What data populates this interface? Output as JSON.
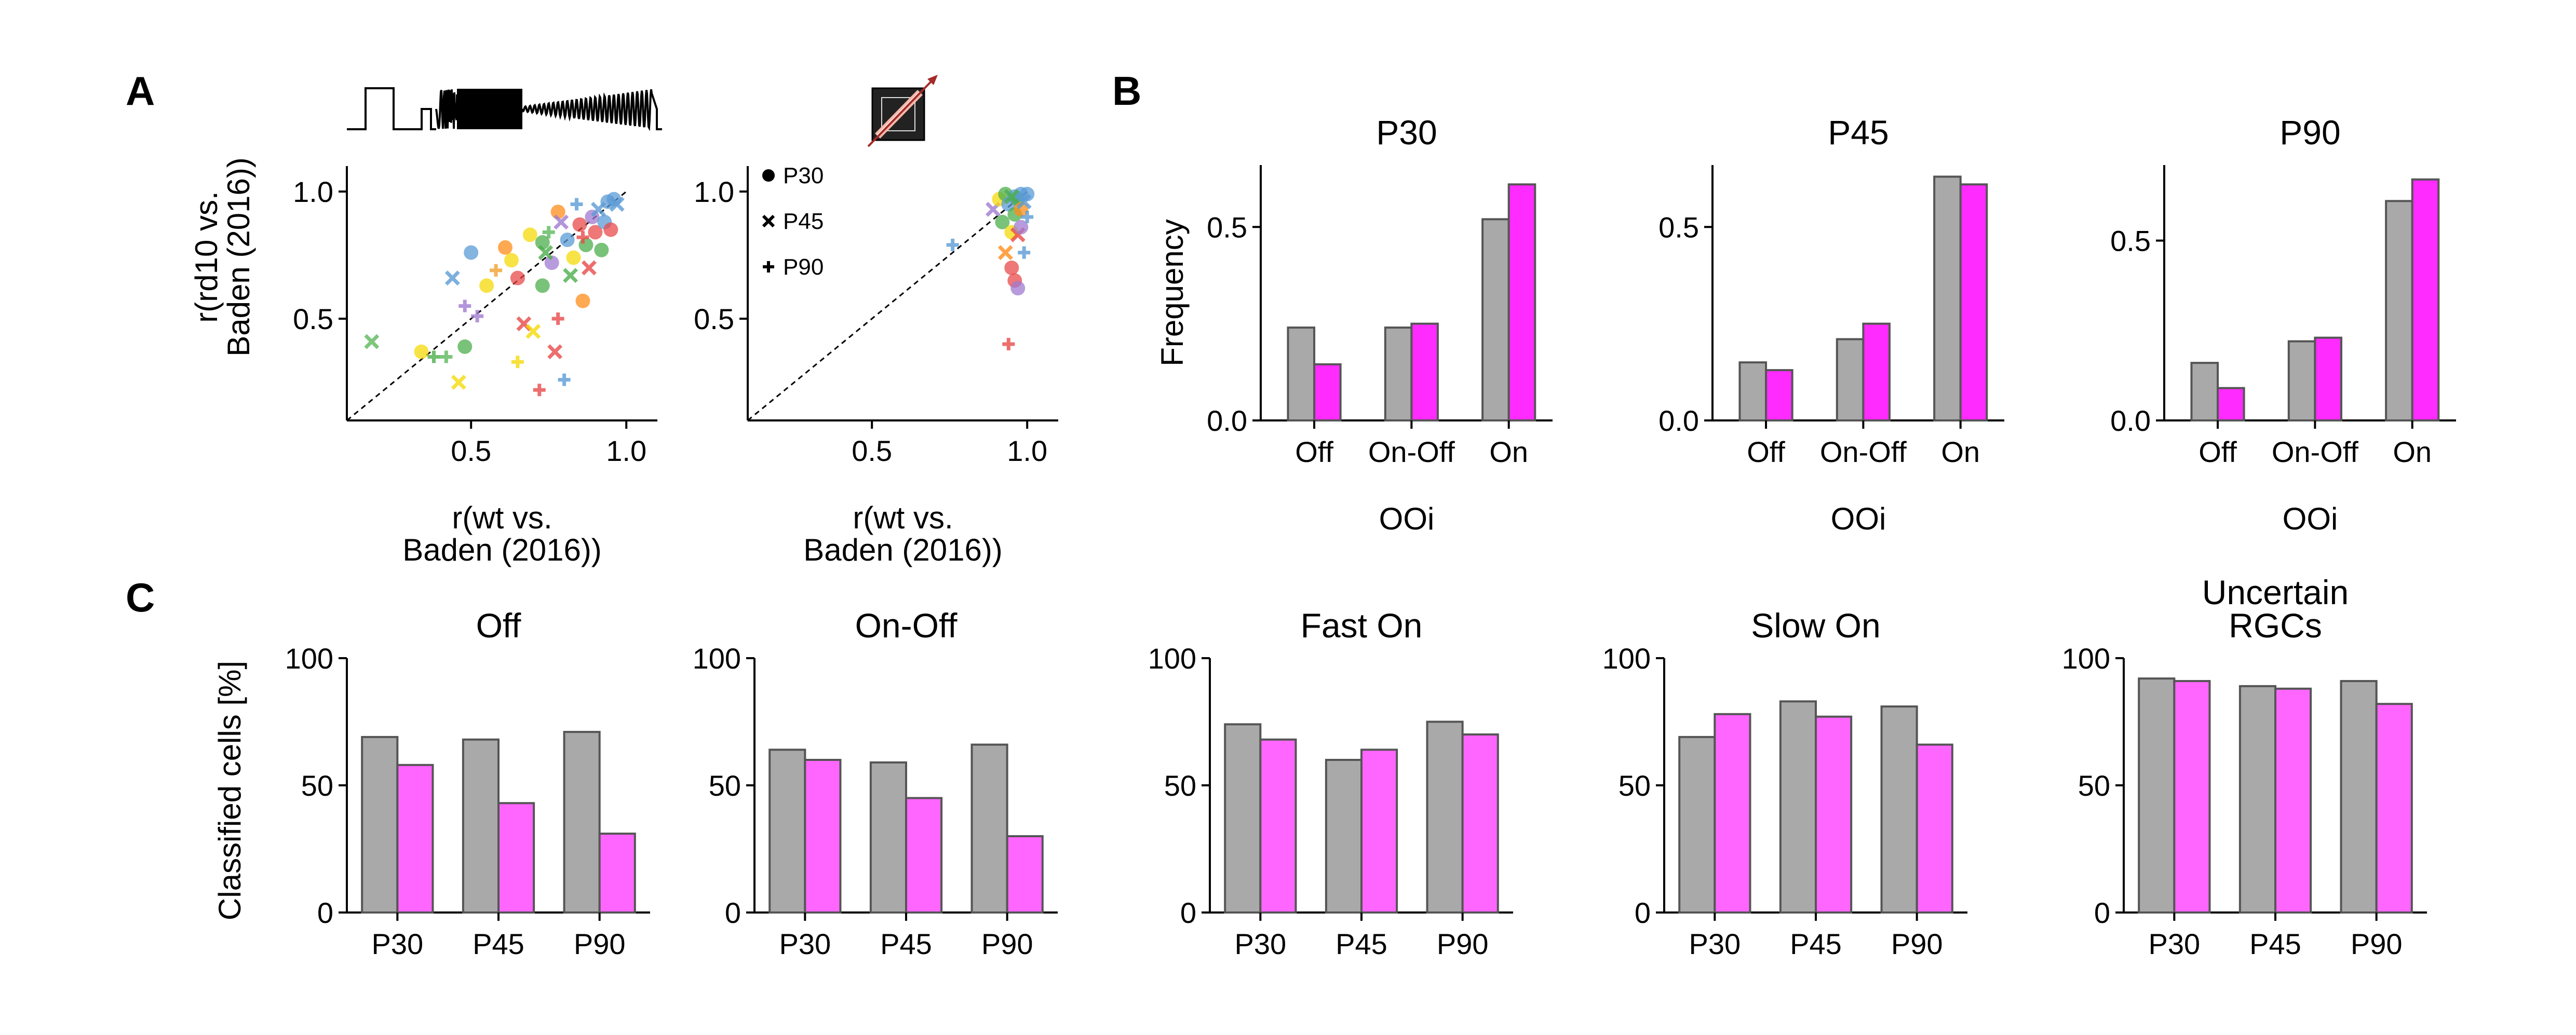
{
  "colors": {
    "wt": "#a9a9a9",
    "rd10_ooi": "#ff2bff",
    "rd10_classified": "#ff66ff",
    "bar_edge": "#555555",
    "axis": "#000000"
  },
  "panel_letters": {
    "a": "A",
    "b": "B",
    "c": "C"
  },
  "chart_data": [
    {
      "id": "A1",
      "type": "scatter",
      "stimulus_icon": "chirp-stimulus-icon",
      "xlabel": [
        "r(wt vs.",
        "Baden (2016))"
      ],
      "ylabel": [
        "r(rd10 vs.",
        "Baden (2016))"
      ],
      "xlim": [
        0.1,
        1.1
      ],
      "ylim": [
        0.1,
        1.1
      ],
      "xticks": [
        0.5,
        1.0
      ],
      "xtick_labels": [
        "0.5",
        "1.0"
      ],
      "yticks": [
        0.5,
        1.0
      ],
      "ytick_labels": [
        "0.5",
        "1.0"
      ],
      "diagonal": true,
      "points": [
        {
          "x": 0.18,
          "y": 0.41,
          "m": "x",
          "c": "#5cb85c"
        },
        {
          "x": 0.34,
          "y": 0.37,
          "m": "o",
          "c": "#f5d90a"
        },
        {
          "x": 0.38,
          "y": 0.35,
          "m": "+",
          "c": "#4cae4c"
        },
        {
          "x": 0.42,
          "y": 0.35,
          "m": "+",
          "c": "#5cb85c"
        },
        {
          "x": 0.46,
          "y": 0.25,
          "m": "x",
          "c": "#f5d90a"
        },
        {
          "x": 0.48,
          "y": 0.39,
          "m": "o",
          "c": "#4cae4c"
        },
        {
          "x": 0.5,
          "y": 0.76,
          "m": "o",
          "c": "#5b9bd5"
        },
        {
          "x": 0.44,
          "y": 0.66,
          "m": "x",
          "c": "#5b9bd5"
        },
        {
          "x": 0.48,
          "y": 0.55,
          "m": "+",
          "c": "#a07ad0"
        },
        {
          "x": 0.52,
          "y": 0.51,
          "m": "+",
          "c": "#a07ad0"
        },
        {
          "x": 0.55,
          "y": 0.63,
          "m": "o",
          "c": "#f5d90a"
        },
        {
          "x": 0.58,
          "y": 0.69,
          "m": "+",
          "c": "#f0a030"
        },
        {
          "x": 0.61,
          "y": 0.78,
          "m": "o",
          "c": "#ff8c1a"
        },
        {
          "x": 0.63,
          "y": 0.73,
          "m": "o",
          "c": "#f5d90a"
        },
        {
          "x": 0.65,
          "y": 0.66,
          "m": "o",
          "c": "#e84a4a"
        },
        {
          "x": 0.65,
          "y": 0.33,
          "m": "+",
          "c": "#f5d90a"
        },
        {
          "x": 0.67,
          "y": 0.48,
          "m": "x",
          "c": "#e84a4a"
        },
        {
          "x": 0.7,
          "y": 0.45,
          "m": "x",
          "c": "#f5d90a"
        },
        {
          "x": 0.72,
          "y": 0.22,
          "m": "+",
          "c": "#e84a4a"
        },
        {
          "x": 0.73,
          "y": 0.8,
          "m": "o",
          "c": "#4cae4c"
        },
        {
          "x": 0.73,
          "y": 0.63,
          "m": "o",
          "c": "#4cae4c"
        },
        {
          "x": 0.75,
          "y": 0.84,
          "m": "+",
          "c": "#5cb85c"
        },
        {
          "x": 0.76,
          "y": 0.72,
          "m": "o",
          "c": "#a07ad0"
        },
        {
          "x": 0.77,
          "y": 0.37,
          "m": "x",
          "c": "#e84a4a"
        },
        {
          "x": 0.78,
          "y": 0.92,
          "m": "o",
          "c": "#ff8c1a"
        },
        {
          "x": 0.78,
          "y": 0.5,
          "m": "+",
          "c": "#e84a4a"
        },
        {
          "x": 0.79,
          "y": 0.88,
          "m": "x",
          "c": "#a07ad0"
        },
        {
          "x": 0.8,
          "y": 0.26,
          "m": "+",
          "c": "#5b9bd5"
        },
        {
          "x": 0.81,
          "y": 0.81,
          "m": "o",
          "c": "#5b9bd5"
        },
        {
          "x": 0.82,
          "y": 0.67,
          "m": "x",
          "c": "#4cae4c"
        },
        {
          "x": 0.83,
          "y": 0.74,
          "m": "o",
          "c": "#f5d90a"
        },
        {
          "x": 0.84,
          "y": 0.95,
          "m": "+",
          "c": "#5b9bd5"
        },
        {
          "x": 0.85,
          "y": 0.87,
          "m": "o",
          "c": "#e84a4a"
        },
        {
          "x": 0.86,
          "y": 0.57,
          "m": "o",
          "c": "#ff8c1a"
        },
        {
          "x": 0.87,
          "y": 0.79,
          "m": "o",
          "c": "#4cae4c"
        },
        {
          "x": 0.88,
          "y": 0.7,
          "m": "x",
          "c": "#e84a4a"
        },
        {
          "x": 0.89,
          "y": 0.9,
          "m": "o",
          "c": "#a07ad0"
        },
        {
          "x": 0.9,
          "y": 0.84,
          "m": "o",
          "c": "#e84a4a"
        },
        {
          "x": 0.91,
          "y": 0.93,
          "m": "x",
          "c": "#5b9bd5"
        },
        {
          "x": 0.92,
          "y": 0.77,
          "m": "o",
          "c": "#4cae4c"
        },
        {
          "x": 0.93,
          "y": 0.88,
          "m": "o",
          "c": "#5b9bd5"
        },
        {
          "x": 0.94,
          "y": 0.96,
          "m": "o",
          "c": "#5b9bd5"
        },
        {
          "x": 0.95,
          "y": 0.85,
          "m": "o",
          "c": "#e84a4a"
        },
        {
          "x": 0.96,
          "y": 0.97,
          "m": "o",
          "c": "#5b9bd5"
        },
        {
          "x": 0.97,
          "y": 0.95,
          "m": "x",
          "c": "#5b9bd5"
        },
        {
          "x": 0.86,
          "y": 0.82,
          "m": "+",
          "c": "#e84a4a"
        },
        {
          "x": 0.69,
          "y": 0.83,
          "m": "o",
          "c": "#f5d90a"
        },
        {
          "x": 0.74,
          "y": 0.76,
          "m": "x",
          "c": "#4cae4c"
        }
      ]
    },
    {
      "id": "A2",
      "type": "scatter",
      "stimulus_icon": "moving-bar-stimulus-icon",
      "xlabel": [
        "r(wt vs.",
        "Baden (2016))"
      ],
      "ylabel": [],
      "xlim": [
        0.1,
        1.1
      ],
      "ylim": [
        0.1,
        1.1
      ],
      "xticks": [
        0.5,
        1.0
      ],
      "xtick_labels": [
        "0.5",
        "1.0"
      ],
      "yticks": [
        0.5,
        1.0
      ],
      "ytick_labels": [
        "0.5",
        "1.0"
      ],
      "diagonal": true,
      "legend": {
        "placement": "top-left",
        "entries": [
          {
            "label": "P30",
            "marker": "o"
          },
          {
            "label": "P45",
            "marker": "x"
          },
          {
            "label": "P90",
            "marker": "+"
          }
        ]
      },
      "points": [
        {
          "x": 0.76,
          "y": 0.79,
          "m": "+",
          "c": "#5b9bd5"
        },
        {
          "x": 0.89,
          "y": 0.93,
          "m": "x",
          "c": "#a07ad0"
        },
        {
          "x": 0.91,
          "y": 0.97,
          "m": "o",
          "c": "#f5d90a"
        },
        {
          "x": 0.92,
          "y": 0.88,
          "m": "o",
          "c": "#4cae4c"
        },
        {
          "x": 0.93,
          "y": 0.99,
          "m": "o",
          "c": "#4cae4c"
        },
        {
          "x": 0.94,
          "y": 0.95,
          "m": "o",
          "c": "#5b9bd5"
        },
        {
          "x": 0.94,
          "y": 0.4,
          "m": "+",
          "c": "#e84a4a"
        },
        {
          "x": 0.95,
          "y": 0.84,
          "m": "o",
          "c": "#f5d90a"
        },
        {
          "x": 0.95,
          "y": 0.7,
          "m": "o",
          "c": "#e84a4a"
        },
        {
          "x": 0.96,
          "y": 0.98,
          "m": "o",
          "c": "#5b9bd5"
        },
        {
          "x": 0.96,
          "y": 0.91,
          "m": "o",
          "c": "#4cae4c"
        },
        {
          "x": 0.96,
          "y": 0.65,
          "m": "o",
          "c": "#e84a4a"
        },
        {
          "x": 0.97,
          "y": 0.97,
          "m": "o",
          "c": "#4cae4c"
        },
        {
          "x": 0.97,
          "y": 0.62,
          "m": "o",
          "c": "#a07ad0"
        },
        {
          "x": 0.97,
          "y": 0.83,
          "m": "x",
          "c": "#e84a4a"
        },
        {
          "x": 0.98,
          "y": 0.99,
          "m": "o",
          "c": "#5b9bd5"
        },
        {
          "x": 0.98,
          "y": 0.93,
          "m": "o",
          "c": "#ff8c1a"
        },
        {
          "x": 0.98,
          "y": 0.86,
          "m": "o",
          "c": "#a07ad0"
        },
        {
          "x": 0.99,
          "y": 0.96,
          "m": "x",
          "c": "#5b9bd5"
        },
        {
          "x": 0.99,
          "y": 0.76,
          "m": "+",
          "c": "#5b9bd5"
        },
        {
          "x": 1.0,
          "y": 0.99,
          "m": "o",
          "c": "#5b9bd5"
        },
        {
          "x": 1.0,
          "y": 0.9,
          "m": "+",
          "c": "#5b9bd5"
        },
        {
          "x": 0.93,
          "y": 0.76,
          "m": "x",
          "c": "#ff8c1a"
        },
        {
          "x": 0.95,
          "y": 0.98,
          "m": "x",
          "c": "#4cae4c"
        }
      ]
    },
    {
      "id": "B1",
      "type": "bar",
      "title": "P30",
      "categories": [
        "Off",
        "On-Off",
        "On"
      ],
      "series": [
        {
          "values": [
            0.24,
            0.24,
            0.52
          ]
        },
        {
          "values": [
            0.145,
            0.25,
            0.61
          ]
        }
      ],
      "ylim": [
        0,
        0.66
      ],
      "yticks": [
        0.0,
        0.5
      ],
      "ytick_labels": [
        "0.0",
        "0.5"
      ],
      "ylabel": "Frequency",
      "xlabel": "OOi"
    },
    {
      "id": "B2",
      "type": "bar",
      "title": "P45",
      "categories": [
        "Off",
        "On-Off",
        "On"
      ],
      "series": [
        {
          "values": [
            0.15,
            0.21,
            0.63
          ]
        },
        {
          "values": [
            0.13,
            0.25,
            0.61
          ]
        }
      ],
      "ylim": [
        0,
        0.66
      ],
      "yticks": [
        0.0,
        0.5
      ],
      "ytick_labels": [
        "0.0",
        "0.5"
      ],
      "ylabel": "",
      "xlabel": "OOi"
    },
    {
      "id": "B3",
      "type": "bar",
      "title": "P90",
      "categories": [
        "Off",
        "On-Off",
        "On"
      ],
      "series": [
        {
          "values": [
            0.16,
            0.22,
            0.61
          ]
        },
        {
          "values": [
            0.09,
            0.23,
            0.67
          ]
        }
      ],
      "ylim": [
        0,
        0.71
      ],
      "yticks": [
        0.0,
        0.5
      ],
      "ytick_labels": [
        "0.0",
        "0.5"
      ],
      "ylabel": "",
      "xlabel": "OOi"
    },
    {
      "id": "C1",
      "type": "bar",
      "title": [
        "Off"
      ],
      "categories": [
        "P30",
        "P45",
        "P90"
      ],
      "series": [
        {
          "values": [
            69,
            68,
            71
          ]
        },
        {
          "values": [
            58,
            43,
            31
          ]
        }
      ],
      "ylim": [
        0,
        100
      ],
      "yticks": [
        0,
        50,
        100
      ],
      "ytick_labels": [
        "0",
        "50",
        "100"
      ],
      "ylabel": "Classified cells [%]"
    },
    {
      "id": "C2",
      "type": "bar",
      "title": [
        "On-Off"
      ],
      "categories": [
        "P30",
        "P45",
        "P90"
      ],
      "series": [
        {
          "values": [
            64,
            59,
            66
          ]
        },
        {
          "values": [
            60,
            45,
            30
          ]
        }
      ],
      "ylim": [
        0,
        100
      ],
      "yticks": [
        0,
        50,
        100
      ],
      "ytick_labels": [
        "0",
        "50",
        "100"
      ],
      "ylabel": ""
    },
    {
      "id": "C3",
      "type": "bar",
      "title": [
        "Fast On"
      ],
      "categories": [
        "P30",
        "P45",
        "P90"
      ],
      "series": [
        {
          "values": [
            74,
            60,
            75
          ]
        },
        {
          "values": [
            68,
            64,
            70
          ]
        }
      ],
      "ylim": [
        0,
        100
      ],
      "yticks": [
        0,
        50,
        100
      ],
      "ytick_labels": [
        "0",
        "50",
        "100"
      ],
      "ylabel": ""
    },
    {
      "id": "C4",
      "type": "bar",
      "title": [
        "Slow On"
      ],
      "categories": [
        "P30",
        "P45",
        "P90"
      ],
      "series": [
        {
          "values": [
            69,
            83,
            81
          ]
        },
        {
          "values": [
            78,
            77,
            66
          ]
        }
      ],
      "ylim": [
        0,
        100
      ],
      "yticks": [
        0,
        50,
        100
      ],
      "ytick_labels": [
        "0",
        "50",
        "100"
      ],
      "ylabel": ""
    },
    {
      "id": "C5",
      "type": "bar",
      "title": [
        "Uncertain",
        "RGCs"
      ],
      "categories": [
        "P30",
        "P45",
        "P90"
      ],
      "series": [
        {
          "values": [
            92,
            89,
            91
          ]
        },
        {
          "values": [
            91,
            88,
            82
          ]
        }
      ],
      "ylim": [
        0,
        100
      ],
      "yticks": [
        0,
        50,
        100
      ],
      "ytick_labels": [
        "0",
        "50",
        "100"
      ],
      "ylabel": ""
    }
  ]
}
